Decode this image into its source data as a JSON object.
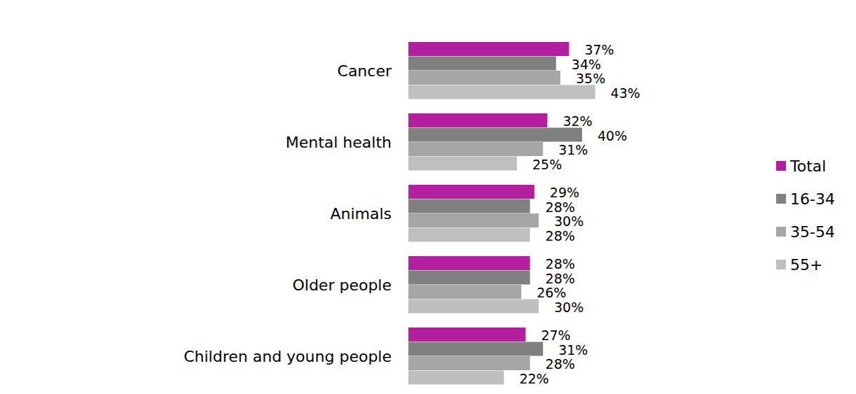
{
  "chart_data": {
    "type": "bar",
    "orientation": "horizontal",
    "categories": [
      "Cancer",
      "Mental health",
      "Animals",
      "Older people",
      "Children and young people"
    ],
    "series": [
      {
        "name": "Total",
        "color": "#b41f9f",
        "values": [
          37,
          32,
          29,
          28,
          27
        ],
        "value_labels": [
          "37%",
          "32%",
          "29%",
          "28%",
          "27%"
        ]
      },
      {
        "name": "16-34",
        "color": "#808080",
        "values": [
          34,
          40,
          28,
          28,
          31
        ],
        "value_labels": [
          "34%",
          "40%",
          "28%",
          "28%",
          "31%"
        ]
      },
      {
        "name": "35-54",
        "color": "#a6a6a6",
        "values": [
          35,
          31,
          30,
          26,
          28
        ],
        "value_labels": [
          "35%",
          "31%",
          "30%",
          "26%",
          "28%"
        ]
      },
      {
        "name": "55+",
        "color": "#bfbfbf",
        "values": [
          43,
          25,
          28,
          30,
          22
        ],
        "value_labels": [
          "43%",
          "25%",
          "28%",
          "30%",
          "22%"
        ]
      }
    ],
    "ylim": [
      0,
      50
    ],
    "tick_labels": false,
    "data_labels": true,
    "legend": "right"
  }
}
